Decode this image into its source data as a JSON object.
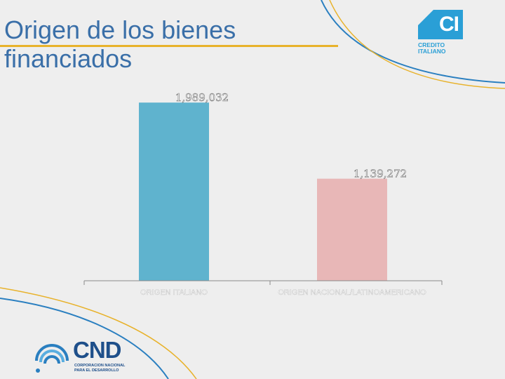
{
  "slide": {
    "title": "Origen de los bienes financiados"
  },
  "logos": {
    "credito_italiano": {
      "mark": "CI",
      "name": "CREDITO\nITALIANO",
      "color": "#2a9fd6"
    },
    "cnd": {
      "mark": "CND",
      "name": "CORPORACION NACIONAL\nPARA EL DESARROLLO",
      "color": "#1e4f8a"
    }
  },
  "colors": {
    "title": "#3a6fa8",
    "accent": "#e8b22b",
    "swirl_blue": "#2a7fc0"
  },
  "chart_data": {
    "type": "bar",
    "categories": [
      "ORIGEN ITALIANO",
      "ORIGEN NACIONAL/LATINOAMERICANO"
    ],
    "values": [
      1989032,
      1139272
    ],
    "value_labels": [
      "1,989,032",
      "1,139,272"
    ],
    "colors": [
      "#5fb3ce",
      "#e8b7b7"
    ],
    "ylim": [
      0,
      2100000
    ],
    "grid": false,
    "legend": "none"
  }
}
